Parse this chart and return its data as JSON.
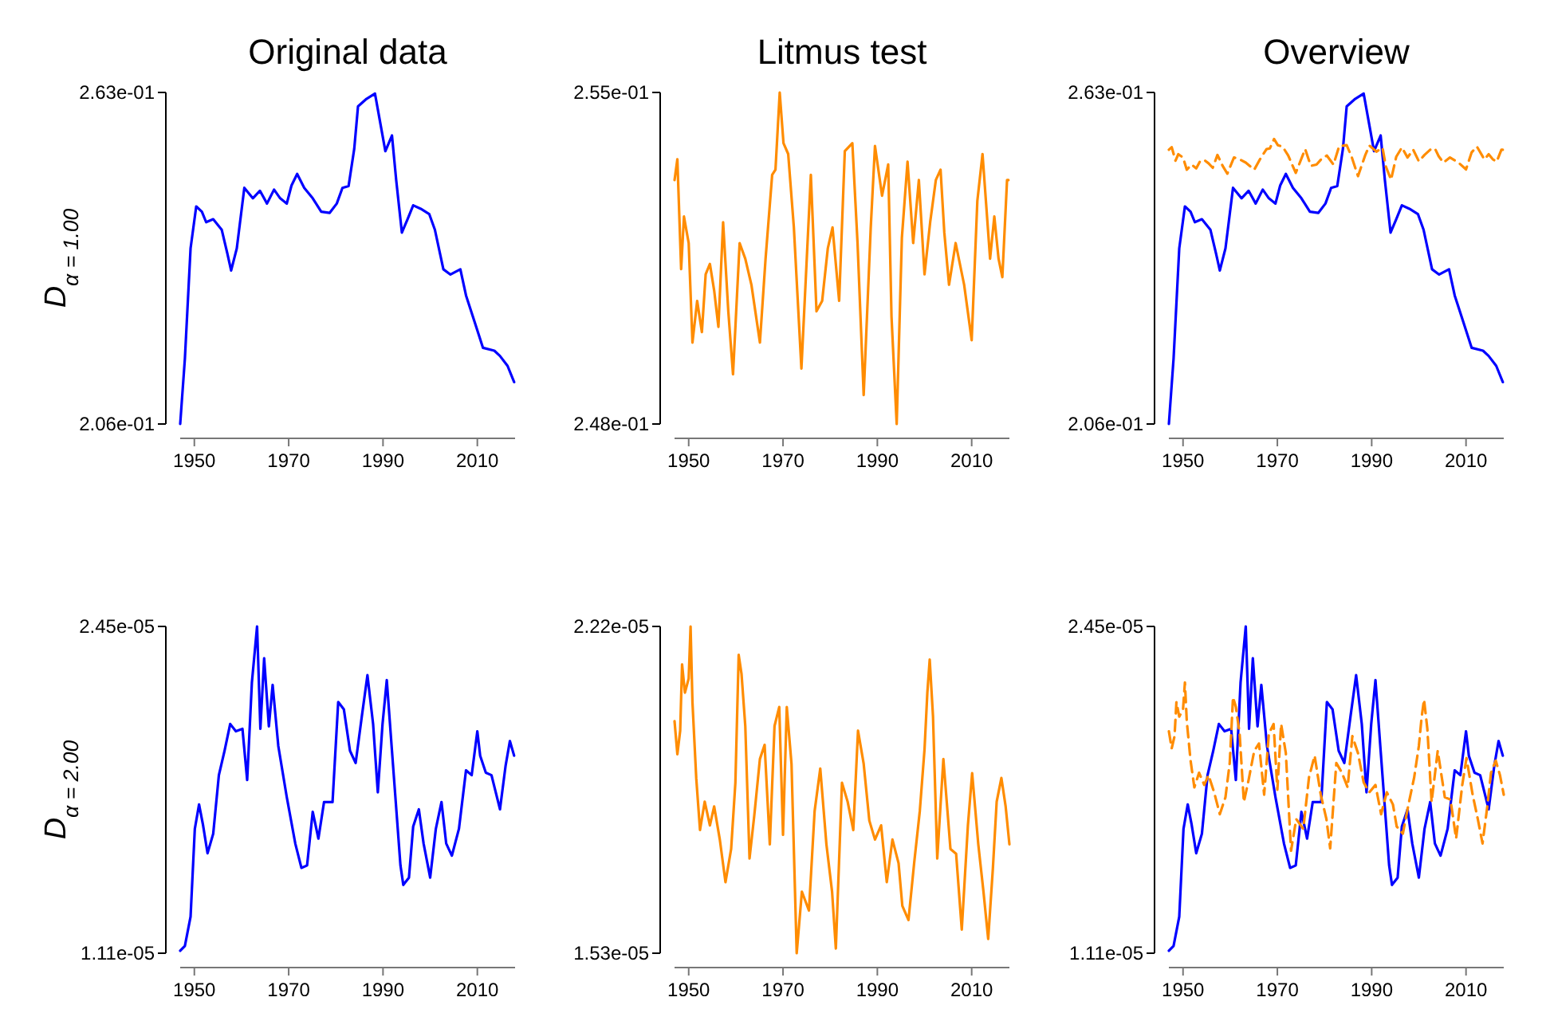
{
  "chart_data": [
    {
      "type": "line",
      "title": "Original data",
      "ylabel": "D$_{α = 1.00}$",
      "xlim": [
        1947,
        2018
      ],
      "xticks": [
        1950,
        1970,
        1990,
        2010
      ],
      "ylim": [
        0.206,
        0.263
      ],
      "yticks": [
        {
          "value": 0.263,
          "label": "2.63e-01"
        },
        {
          "value": 0.206,
          "label": "2.06e-01"
        }
      ],
      "series": [
        {
          "color": "#0000ff",
          "line_style": "solid",
          "x": [
            1947,
            1948,
            1949.2,
            1950.4,
            1951.6,
            1952.5,
            1954,
            1955.8,
            1957,
            1957.8,
            1959,
            1960.6,
            1962.4,
            1963.9,
            1965.4,
            1966.9,
            1968.2,
            1969.6,
            1970.6,
            1971.8,
            1973.3,
            1975.1,
            1976.9,
            1978.7,
            1980.2,
            1981.4,
            1982.7,
            1983.9,
            1984.7,
            1986.5,
            1988.3,
            1989.5,
            1990.5,
            1991.9,
            1992.8,
            1994,
            1995.2,
            1996.4,
            1998,
            1999.8,
            2001,
            2002.8,
            2004.3,
            2006.4,
            2007.6,
            2009.4,
            2011.2,
            2013.6,
            2014.8,
            2016.4,
            2017.8
          ],
          "values": [
            0.206,
            0.2173,
            0.2362,
            0.2434,
            0.2425,
            0.2407,
            0.2412,
            0.2394,
            0.2353,
            0.2324,
            0.2362,
            0.2466,
            0.2448,
            0.2461,
            0.2439,
            0.2463,
            0.2448,
            0.2439,
            0.247,
            0.249,
            0.2466,
            0.2448,
            0.2425,
            0.2423,
            0.2439,
            0.2466,
            0.2469,
            0.2533,
            0.2606,
            0.2619,
            0.2628,
            0.2574,
            0.2529,
            0.2556,
            0.2479,
            0.2389,
            0.2412,
            0.2436,
            0.243,
            0.2421,
            0.2394,
            0.2326,
            0.2317,
            0.2326,
            0.2281,
            0.2236,
            0.2191,
            0.2186,
            0.2177,
            0.216,
            0.2132
          ]
        }
      ]
    },
    {
      "type": "line",
      "title": "Litmus test",
      "xlim": [
        1947,
        2018
      ],
      "xticks": [
        1950,
        1970,
        1990,
        2010
      ],
      "ylim": [
        0.248,
        0.255
      ],
      "yticks": [
        {
          "value": 0.255,
          "label": "2.55e-01"
        },
        {
          "value": 0.248,
          "label": "2.48e-01"
        }
      ],
      "series": [
        {
          "color": "#ff8c00",
          "line_style": "solid",
          "x": [
            1947,
            1947.6,
            1948.4,
            1949,
            1950,
            1950.8,
            1951.8,
            1952.8,
            1953.6,
            1954.5,
            1955.4,
            1956.3,
            1957.3,
            1958.4,
            1959.4,
            1960.8,
            1962,
            1963.3,
            1965.1,
            1966.3,
            1967.7,
            1968.4,
            1969.3,
            1970.1,
            1971.1,
            1972.3,
            1973.9,
            1975.9,
            1977.1,
            1978.3,
            1979.5,
            1980.5,
            1981.9,
            1983.1,
            1984.7,
            1985.8,
            1987.1,
            1988.6,
            1989.5,
            1991,
            1992.3,
            1993,
            1994.1,
            1995.2,
            1996.4,
            1997.6,
            1998.8,
            2000,
            2001.2,
            2002.4,
            2003.4,
            2004.2,
            2005.2,
            2006.6,
            2008.4,
            2010,
            2011.2,
            2012.3,
            2013.9,
            2014.8,
            2015.7,
            2016.5,
            2017.5,
            2017.8
          ],
          "values": [
            0.25315,
            0.25359,
            0.25127,
            0.25238,
            0.25182,
            0.24972,
            0.2506,
            0.24994,
            0.25116,
            0.25138,
            0.25082,
            0.25005,
            0.25226,
            0.25038,
            0.24905,
            0.25182,
            0.25149,
            0.25094,
            0.24972,
            0.25149,
            0.25326,
            0.25337,
            0.255,
            0.25393,
            0.2537,
            0.25215,
            0.24917,
            0.25326,
            0.25038,
            0.2506,
            0.25171,
            0.25215,
            0.2506,
            0.25376,
            0.25393,
            0.25182,
            0.24861,
            0.25215,
            0.25387,
            0.25282,
            0.25348,
            0.25027,
            0.248,
            0.25193,
            0.25354,
            0.25182,
            0.25315,
            0.25116,
            0.25226,
            0.25315,
            0.25337,
            0.25204,
            0.25094,
            0.25182,
            0.25094,
            0.24977,
            0.25271,
            0.2537,
            0.25149,
            0.25238,
            0.25149,
            0.2511,
            0.25315,
            0.25315
          ]
        }
      ]
    },
    {
      "type": "line",
      "title": "Overview",
      "xlim": [
        1947,
        2018
      ],
      "xticks": [
        1950,
        1970,
        1990,
        2010
      ],
      "ylim": [
        0.206,
        0.263
      ],
      "yticks": [
        {
          "value": 0.263,
          "label": "2.63e-01"
        },
        {
          "value": 0.206,
          "label": "2.06e-01"
        }
      ],
      "series": [
        {
          "color": "#0000ff",
          "line_style": "solid",
          "x": [
            1947,
            1948,
            1949.2,
            1950.4,
            1951.6,
            1952.5,
            1954,
            1955.8,
            1957,
            1957.8,
            1959,
            1960.6,
            1962.4,
            1963.9,
            1965.4,
            1966.9,
            1968.2,
            1969.6,
            1970.6,
            1971.8,
            1973.3,
            1975.1,
            1976.9,
            1978.7,
            1980.2,
            1981.4,
            1982.7,
            1983.9,
            1984.7,
            1986.5,
            1988.3,
            1989.5,
            1990.5,
            1991.9,
            1992.8,
            1994,
            1995.2,
            1996.4,
            1998,
            1999.8,
            2001,
            2002.8,
            2004.3,
            2006.4,
            2007.6,
            2009.4,
            2011.2,
            2013.6,
            2014.8,
            2016.4,
            2017.8
          ],
          "values": [
            0.206,
            0.2173,
            0.2362,
            0.2434,
            0.2425,
            0.2407,
            0.2412,
            0.2394,
            0.2353,
            0.2324,
            0.2362,
            0.2466,
            0.2448,
            0.2461,
            0.2439,
            0.2463,
            0.2448,
            0.2439,
            0.247,
            0.249,
            0.2466,
            0.2448,
            0.2425,
            0.2423,
            0.2439,
            0.2466,
            0.2469,
            0.2533,
            0.2606,
            0.2619,
            0.2628,
            0.2574,
            0.2529,
            0.2556,
            0.2479,
            0.2389,
            0.2412,
            0.2436,
            0.243,
            0.2421,
            0.2394,
            0.2326,
            0.2317,
            0.2326,
            0.2281,
            0.2236,
            0.2191,
            0.2186,
            0.2177,
            0.216,
            0.2132
          ]
        },
        {
          "color": "#ff8c00",
          "line_style": "dashed",
          "x": [
            1947,
            1947.6,
            1948.4,
            1949,
            1950,
            1950.8,
            1951.8,
            1952.8,
            1953.6,
            1954.5,
            1955.4,
            1956.3,
            1957.3,
            1958.4,
            1959.4,
            1960.8,
            1962,
            1963.3,
            1965.1,
            1966.3,
            1967.7,
            1968.4,
            1969.3,
            1970.1,
            1971.1,
            1972.3,
            1973.9,
            1975.9,
            1977.1,
            1978.3,
            1979.5,
            1980.5,
            1981.9,
            1983.1,
            1984.7,
            1985.8,
            1987.1,
            1988.6,
            1989.5,
            1991,
            1992.3,
            1993,
            1994.1,
            1995.2,
            1996.4,
            1997.6,
            1998.8,
            2000,
            2001.2,
            2002.4,
            2003.4,
            2004.2,
            2005.2,
            2006.6,
            2008.4,
            2010,
            2011.2,
            2012.3,
            2013.9,
            2014.8,
            2015.7,
            2016.5,
            2017.5,
            2017.8
          ],
          "values": [
            0.25315,
            0.25359,
            0.25127,
            0.25238,
            0.25182,
            0.24972,
            0.2506,
            0.24994,
            0.25116,
            0.25138,
            0.25082,
            0.25005,
            0.25226,
            0.25038,
            0.24905,
            0.25182,
            0.25149,
            0.25094,
            0.24972,
            0.25149,
            0.25326,
            0.25337,
            0.255,
            0.25393,
            0.2537,
            0.25215,
            0.24917,
            0.25326,
            0.25038,
            0.2506,
            0.25171,
            0.25215,
            0.2506,
            0.25376,
            0.25393,
            0.25182,
            0.24861,
            0.25215,
            0.25387,
            0.25282,
            0.25348,
            0.25027,
            0.248,
            0.25193,
            0.25354,
            0.25182,
            0.25315,
            0.25116,
            0.25226,
            0.25315,
            0.25337,
            0.25204,
            0.25094,
            0.25182,
            0.25094,
            0.24977,
            0.25271,
            0.2537,
            0.25149,
            0.25238,
            0.25149,
            0.2511,
            0.25315,
            0.25315
          ]
        }
      ]
    },
    {
      "type": "line",
      "ylabel": "D$_{α = 2.00}$",
      "xlim": [
        1947,
        2018
      ],
      "xticks": [
        1950,
        1970,
        1990,
        2010
      ],
      "ylim": [
        1.11e-05,
        2.45e-05
      ],
      "yticks": [
        {
          "value": 2.45e-05,
          "label": "2.45e-05"
        },
        {
          "value": 1.11e-05,
          "label": "1.11e-05"
        }
      ],
      "series": [
        {
          "color": "#0000ff",
          "line_style": "solid",
          "x": [
            1947,
            1948,
            1949.2,
            1950.1,
            1951,
            1951.8,
            1952.8,
            1954,
            1955.2,
            1956.4,
            1957.6,
            1958.8,
            1960.2,
            1961.2,
            1962.2,
            1963.3,
            1964,
            1964.8,
            1965.8,
            1966.6,
            1967.8,
            1969.6,
            1971.4,
            1972.7,
            1973.9,
            1975.1,
            1976.3,
            1977.5,
            1979.3,
            1980.5,
            1981.7,
            1983,
            1984.2,
            1985.5,
            1986.7,
            1987.9,
            1988.9,
            1989.9,
            1990.8,
            1991.9,
            1993.7,
            1994.3,
            1995.5,
            1996.4,
            1997.6,
            1998.6,
            2000,
            2001.2,
            2002.4,
            2003.4,
            2004.6,
            2006.1,
            2007.6,
            2008.8,
            2010,
            2010.6,
            2011.8,
            2013,
            2014.8,
            2016,
            2016.9,
            2017.8
          ],
          "values": [
            1.12e-05,
            1.14e-05,
            1.26e-05,
            1.62e-05,
            1.72e-05,
            1.64e-05,
            1.52e-05,
            1.6e-05,
            1.84e-05,
            1.94e-05,
            2.05e-05,
            2.02e-05,
            2.03e-05,
            1.82e-05,
            2.22e-05,
            2.45e-05,
            2.03e-05,
            2.32e-05,
            2.04e-05,
            2.21e-05,
            1.96e-05,
            1.75e-05,
            1.56e-05,
            1.46e-05,
            1.47e-05,
            1.69e-05,
            1.58e-05,
            1.73e-05,
            1.73e-05,
            2.14e-05,
            2.11e-05,
            1.94e-05,
            1.89e-05,
            2.08e-05,
            2.25e-05,
            2.05e-05,
            1.77e-05,
            2.05e-05,
            2.23e-05,
            1.94e-05,
            1.47e-05,
            1.39e-05,
            1.42e-05,
            1.63e-05,
            1.7e-05,
            1.56e-05,
            1.42e-05,
            1.62e-05,
            1.73e-05,
            1.56e-05,
            1.51e-05,
            1.62e-05,
            1.86e-05,
            1.84e-05,
            2.02e-05,
            1.92e-05,
            1.85e-05,
            1.84e-05,
            1.7e-05,
            1.88e-05,
            1.98e-05,
            1.92e-05
          ]
        }
      ]
    },
    {
      "type": "line",
      "xlim": [
        1947,
        2018
      ],
      "xticks": [
        1950,
        1970,
        1990,
        2010
      ],
      "ylim": [
        1.53e-05,
        2.22e-05
      ],
      "yticks": [
        {
          "value": 2.22e-05,
          "label": "2.22e-05"
        },
        {
          "value": 1.53e-05,
          "label": "1.53e-05"
        }
      ],
      "series": [
        {
          "color": "#ff8c00",
          "line_style": "solid",
          "x": [
            1947,
            1947.6,
            1948.2,
            1948.6,
            1949.2,
            1950,
            1950.4,
            1950.8,
            1951.6,
            1952.4,
            1953.4,
            1954.5,
            1955.4,
            1956.6,
            1957.8,
            1959,
            1959.9,
            1960.6,
            1961.2,
            1962,
            1962.9,
            1963.9,
            1965.1,
            1966.1,
            1967.2,
            1968.2,
            1969.2,
            1970,
            1970.8,
            1971.8,
            1972.9,
            1974,
            1975.5,
            1976.7,
            1977.9,
            1979.2,
            1980.4,
            1981.2,
            1982.5,
            1983.7,
            1984.9,
            1985.9,
            1987.1,
            1988.3,
            1989.5,
            1990.8,
            1992,
            1993.2,
            1994.5,
            1995.3,
            1996.6,
            1997.8,
            1999,
            2000,
            2000.6,
            2001.1,
            2001.8,
            2002.7,
            2004,
            2005.5,
            2006.7,
            2007.9,
            2009.2,
            2010.1,
            2011.4,
            2012.5,
            2013.5,
            2014.5,
            2015.3,
            2016.3,
            2017.2,
            2018
          ],
          "values": [
            2.02e-05,
            1.95e-05,
            2e-05,
            2.14e-05,
            2.08e-05,
            2.11e-05,
            2.22e-05,
            2.06e-05,
            1.9e-05,
            1.79e-05,
            1.85e-05,
            1.8e-05,
            1.84e-05,
            1.77e-05,
            1.68e-05,
            1.75e-05,
            1.89e-05,
            2.16e-05,
            2.12e-05,
            2.01e-05,
            1.73e-05,
            1.82e-05,
            1.94e-05,
            1.97e-05,
            1.76e-05,
            2.01e-05,
            2.05e-05,
            1.78e-05,
            2.05e-05,
            1.93e-05,
            1.53e-05,
            1.66e-05,
            1.62e-05,
            1.83e-05,
            1.92e-05,
            1.76e-05,
            1.66e-05,
            1.54e-05,
            1.89e-05,
            1.85e-05,
            1.79e-05,
            2e-05,
            1.93e-05,
            1.81e-05,
            1.77e-05,
            1.8e-05,
            1.68e-05,
            1.77e-05,
            1.72e-05,
            1.63e-05,
            1.6e-05,
            1.72e-05,
            1.83e-05,
            1.96e-05,
            2.08e-05,
            2.15e-05,
            2.03e-05,
            1.73e-05,
            1.94e-05,
            1.75e-05,
            1.74e-05,
            1.58e-05,
            1.8e-05,
            1.91e-05,
            1.76e-05,
            1.66e-05,
            1.56e-05,
            1.71e-05,
            1.85e-05,
            1.9e-05,
            1.84e-05,
            1.76e-05
          ]
        }
      ]
    },
    {
      "type": "line",
      "xlim": [
        1947,
        2018
      ],
      "xticks": [
        1950,
        1970,
        1990,
        2010
      ],
      "ylim": [
        1.11e-05,
        2.45e-05
      ],
      "yticks": [
        {
          "value": 2.45e-05,
          "label": "2.45e-05"
        },
        {
          "value": 1.11e-05,
          "label": "1.11e-05"
        }
      ],
      "series": [
        {
          "color": "#0000ff",
          "line_style": "solid",
          "x": [
            1947,
            1948,
            1949.2,
            1950.1,
            1951,
            1951.8,
            1952.8,
            1954,
            1955.2,
            1956.4,
            1957.6,
            1958.8,
            1960.2,
            1961.2,
            1962.2,
            1963.3,
            1964,
            1964.8,
            1965.8,
            1966.6,
            1967.8,
            1969.6,
            1971.4,
            1972.7,
            1973.9,
            1975.1,
            1976.3,
            1977.5,
            1979.3,
            1980.5,
            1981.7,
            1983,
            1984.2,
            1985.5,
            1986.7,
            1987.9,
            1988.9,
            1989.9,
            1990.8,
            1991.9,
            1993.7,
            1994.3,
            1995.5,
            1996.4,
            1997.6,
            1998.6,
            2000,
            2001.2,
            2002.4,
            2003.4,
            2004.6,
            2006.1,
            2007.6,
            2008.8,
            2010,
            2010.6,
            2011.8,
            2013,
            2014.8,
            2016,
            2016.9,
            2017.8
          ],
          "values": [
            1.12e-05,
            1.14e-05,
            1.26e-05,
            1.62e-05,
            1.72e-05,
            1.64e-05,
            1.52e-05,
            1.6e-05,
            1.84e-05,
            1.94e-05,
            2.05e-05,
            2.02e-05,
            2.03e-05,
            1.82e-05,
            2.22e-05,
            2.45e-05,
            2.03e-05,
            2.32e-05,
            2.04e-05,
            2.21e-05,
            1.96e-05,
            1.75e-05,
            1.56e-05,
            1.46e-05,
            1.47e-05,
            1.69e-05,
            1.58e-05,
            1.73e-05,
            1.73e-05,
            2.14e-05,
            2.11e-05,
            1.94e-05,
            1.89e-05,
            2.08e-05,
            2.25e-05,
            2.05e-05,
            1.77e-05,
            2.05e-05,
            2.23e-05,
            1.94e-05,
            1.47e-05,
            1.39e-05,
            1.42e-05,
            1.63e-05,
            1.7e-05,
            1.56e-05,
            1.42e-05,
            1.62e-05,
            1.73e-05,
            1.56e-05,
            1.51e-05,
            1.62e-05,
            1.86e-05,
            1.84e-05,
            2.02e-05,
            1.92e-05,
            1.85e-05,
            1.84e-05,
            1.7e-05,
            1.88e-05,
            1.98e-05,
            1.92e-05
          ]
        },
        {
          "color": "#ff8c00",
          "line_style": "dashed",
          "x": [
            1947,
            1947.6,
            1948.2,
            1948.6,
            1949.2,
            1950,
            1950.4,
            1950.8,
            1951.6,
            1952.4,
            1953.4,
            1954.5,
            1955.4,
            1956.6,
            1957.8,
            1959,
            1959.9,
            1960.6,
            1961.2,
            1962,
            1962.9,
            1963.9,
            1965.1,
            1966.1,
            1967.2,
            1968.2,
            1969.2,
            1970,
            1970.8,
            1971.8,
            1972.9,
            1974,
            1975.5,
            1976.7,
            1977.9,
            1979.2,
            1980.4,
            1981.2,
            1982.5,
            1983.7,
            1984.9,
            1985.9,
            1987.1,
            1988.3,
            1989.5,
            1990.8,
            1992,
            1993.2,
            1994.5,
            1995.3,
            1996.6,
            1997.8,
            1999,
            2000,
            2000.6,
            2001.1,
            2001.8,
            2002.7,
            2004,
            2005.5,
            2006.7,
            2007.9,
            2009.2,
            2010.1,
            2011.4,
            2012.5,
            2013.5,
            2014.5,
            2015.3,
            2016.3,
            2017.2,
            2018
          ],
          "values": [
            2.02e-05,
            1.95e-05,
            2e-05,
            2.14e-05,
            2.08e-05,
            2.11e-05,
            2.22e-05,
            2.06e-05,
            1.9e-05,
            1.79e-05,
            1.85e-05,
            1.8e-05,
            1.84e-05,
            1.77e-05,
            1.68e-05,
            1.75e-05,
            1.89e-05,
            2.16e-05,
            2.12e-05,
            2.01e-05,
            1.73e-05,
            1.82e-05,
            1.94e-05,
            1.97e-05,
            1.76e-05,
            2.01e-05,
            2.05e-05,
            1.78e-05,
            2.05e-05,
            1.93e-05,
            1.53e-05,
            1.66e-05,
            1.62e-05,
            1.83e-05,
            1.92e-05,
            1.76e-05,
            1.66e-05,
            1.54e-05,
            1.89e-05,
            1.85e-05,
            1.79e-05,
            2e-05,
            1.93e-05,
            1.81e-05,
            1.77e-05,
            1.8e-05,
            1.68e-05,
            1.77e-05,
            1.72e-05,
            1.63e-05,
            1.6e-05,
            1.72e-05,
            1.83e-05,
            1.96e-05,
            2.08e-05,
            2.15e-05,
            2.03e-05,
            1.73e-05,
            1.94e-05,
            1.75e-05,
            1.74e-05,
            1.58e-05,
            1.8e-05,
            1.91e-05,
            1.76e-05,
            1.66e-05,
            1.56e-05,
            1.71e-05,
            1.85e-05,
            1.9e-05,
            1.84e-05,
            1.76e-05
          ]
        }
      ]
    }
  ]
}
